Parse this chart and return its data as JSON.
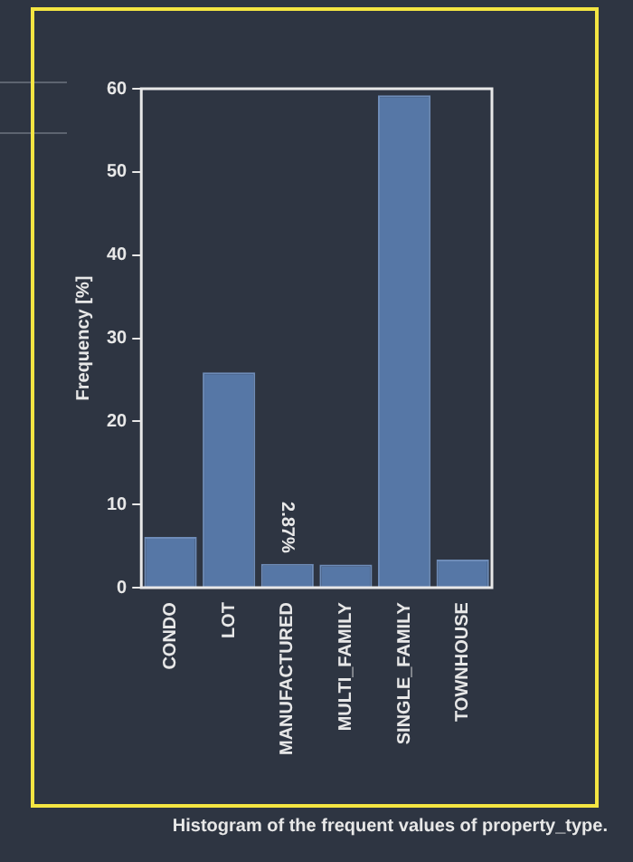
{
  "chart_data": {
    "type": "bar",
    "ylabel": "Frequency [%]",
    "categories": [
      "CONDO",
      "LOT",
      "MANUFACTURED",
      "MULTI_FAMILY",
      "SINGLE_FAMILY",
      "TOWNHOUSE"
    ],
    "values": [
      6.1,
      25.9,
      2.87,
      2.8,
      59.2,
      3.4
    ],
    "value_labels": [
      null,
      null,
      "2.87%",
      null,
      null,
      null
    ],
    "color": "#5677a6",
    "ylim": [
      0,
      60
    ],
    "yticks": [
      0,
      10,
      20,
      30,
      40,
      50,
      60
    ],
    "grid": false,
    "annotations": [
      "Histogram of the frequent values of property_type."
    ]
  }
}
